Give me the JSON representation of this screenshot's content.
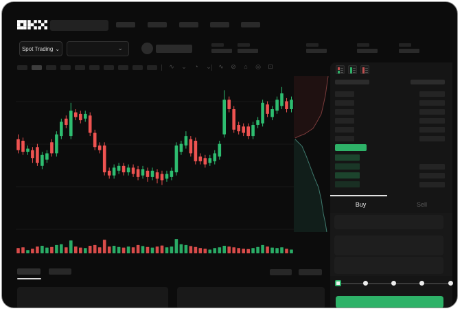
{
  "brand": {
    "name": "OKX"
  },
  "ticker_bar": {
    "market_selector_label": "Spot Trading",
    "caret": "⌄"
  },
  "chart_toolbar": {
    "timeframe_count": 10,
    "active_timeframe_index": 1,
    "icons": [
      {
        "name": "chart-type-icon",
        "glyph": "∿"
      },
      {
        "name": "chart-type-caret-icon",
        "glyph": "⌄"
      },
      {
        "name": "interval-clock-icon",
        "glyph": "◔"
      },
      {
        "name": "interval-caret-icon",
        "glyph": "⌄"
      },
      {
        "name": "line-tool-icon",
        "glyph": "∿"
      },
      {
        "name": "eraser-tool-icon",
        "glyph": "⊘"
      },
      {
        "name": "screenshot-icon",
        "glyph": "⌂"
      },
      {
        "name": "settings-icon",
        "glyph": "◎"
      },
      {
        "name": "fullscreen-icon",
        "glyph": "⊡"
      }
    ]
  },
  "trade_panel": {
    "tabs": [
      {
        "label": "Buy",
        "active": true
      },
      {
        "label": "Sell",
        "active": false
      }
    ],
    "book": {
      "view_modes": [
        "combined",
        "bids-only",
        "asks-only"
      ],
      "ask_rows": 6,
      "bid_rows": 4,
      "bid_tint_opacity": [
        0.3,
        0.22,
        0.3,
        0.17
      ]
    },
    "slider_steps": 5,
    "slider_active_index": 0,
    "accent_green": "#2eb268"
  },
  "chart_data": {
    "type": "candlestick",
    "title": "",
    "xlabel": "",
    "ylabel": "",
    "price_scale_note": "normalized 0-100, no axis labels visible in screenshot",
    "ylim": [
      0,
      100
    ],
    "grid": true,
    "colors": {
      "up": "#2ebd70",
      "down": "#ee5351"
    },
    "candles": [
      [
        61,
        64,
        52,
        54
      ],
      [
        60,
        62,
        51,
        53
      ],
      [
        53,
        57,
        51,
        55
      ],
      [
        54,
        56,
        46,
        49
      ],
      [
        56,
        58,
        44,
        46
      ],
      [
        44,
        53,
        42,
        51
      ],
      [
        48,
        54,
        46,
        52
      ],
      [
        59,
        61,
        50,
        52
      ],
      [
        52,
        66,
        50,
        64
      ],
      [
        63,
        74,
        61,
        72
      ],
      [
        74,
        76,
        68,
        70
      ],
      [
        63,
        84,
        61,
        79
      ],
      [
        78,
        80,
        73,
        75
      ],
      [
        77,
        79,
        71,
        73
      ],
      [
        74,
        79,
        72,
        77
      ],
      [
        76,
        78,
        63,
        65
      ],
      [
        65,
        67,
        54,
        56
      ],
      [
        57,
        59,
        52,
        54
      ],
      [
        57,
        59,
        38,
        40
      ],
      [
        41,
        43,
        36,
        38
      ],
      [
        38,
        45,
        36,
        43
      ],
      [
        41,
        46,
        39,
        44
      ],
      [
        44,
        46,
        38,
        40
      ],
      [
        40,
        45,
        38,
        43
      ],
      [
        43,
        45,
        37,
        39
      ],
      [
        42,
        44,
        35,
        37
      ],
      [
        38,
        44,
        36,
        42
      ],
      [
        41,
        43,
        34,
        37
      ],
      [
        37,
        43,
        35,
        41
      ],
      [
        40,
        42,
        33,
        36
      ],
      [
        39,
        41,
        32,
        35
      ],
      [
        36,
        41,
        34,
        39
      ],
      [
        37,
        43,
        35,
        41
      ],
      [
        40,
        59,
        38,
        57
      ],
      [
        53,
        60,
        51,
        58
      ],
      [
        57,
        66,
        55,
        63
      ],
      [
        61,
        63,
        50,
        52
      ],
      [
        60,
        62,
        45,
        47
      ],
      [
        50,
        52,
        45,
        47
      ],
      [
        49,
        51,
        43,
        45
      ],
      [
        46,
        51,
        44,
        49
      ],
      [
        47,
        54,
        45,
        52
      ],
      [
        50,
        60,
        48,
        58
      ],
      [
        64,
        92,
        62,
        86
      ],
      [
        86,
        88,
        78,
        80
      ],
      [
        80,
        82,
        65,
        67
      ],
      [
        70,
        72,
        64,
        66
      ],
      [
        69,
        71,
        63,
        65
      ],
      [
        69,
        71,
        61,
        63
      ],
      [
        63,
        72,
        61,
        70
      ],
      [
        70,
        75,
        68,
        73
      ],
      [
        71,
        86,
        69,
        84
      ],
      [
        83,
        85,
        75,
        77
      ],
      [
        75,
        82,
        73,
        80
      ],
      [
        79,
        88,
        77,
        86
      ],
      [
        82,
        94,
        80,
        90
      ],
      [
        85,
        87,
        78,
        80
      ],
      [
        80,
        88,
        78,
        86
      ]
    ],
    "volume": [
      35,
      40,
      22,
      30,
      45,
      50,
      38,
      42,
      55,
      60,
      40,
      85,
      45,
      38,
      35,
      50,
      55,
      40,
      90,
      45,
      50,
      42,
      38,
      45,
      40,
      55,
      48,
      42,
      38,
      45,
      52,
      40,
      45,
      95,
      60,
      55,
      48,
      42,
      35,
      30,
      25,
      35,
      40,
      50,
      45,
      40,
      35,
      30,
      28,
      35,
      42,
      55,
      45,
      38,
      35,
      40,
      30,
      25
    ],
    "depth": {
      "ask_curve": [
        [
          50,
          0
        ],
        [
          48,
          14
        ],
        [
          46,
          28
        ],
        [
          43,
          42
        ],
        [
          40,
          55
        ],
        [
          34,
          66
        ],
        [
          28,
          76
        ],
        [
          16,
          84
        ],
        [
          6,
          88
        ],
        [
          2,
          90
        ]
      ],
      "bid_curve": [
        [
          2,
          92
        ],
        [
          12,
          102
        ],
        [
          18,
          116
        ],
        [
          24,
          132
        ],
        [
          30,
          148
        ],
        [
          36,
          162
        ],
        [
          40,
          180
        ],
        [
          43,
          200
        ],
        [
          46,
          214
        ],
        [
          48,
          227
        ]
      ],
      "ask_color": "#7a3b3b",
      "bid_color": "#3f7a6e"
    }
  }
}
